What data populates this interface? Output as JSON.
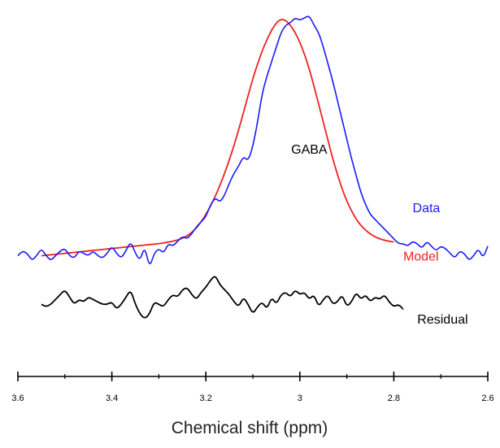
{
  "chart_data": {
    "type": "line",
    "title": "",
    "xlabel": "Chemical shift (ppm)",
    "ylabel": "",
    "x_reversed": true,
    "xlim": [
      3.6,
      2.6
    ],
    "ylim": [
      -0.42,
      1.0
    ],
    "grid": false,
    "x_ticks": [
      {
        "value": 3.6,
        "label": "3.6"
      },
      {
        "value": 3.4,
        "label": "3.4"
      },
      {
        "value": 3.2,
        "label": "3.2"
      },
      {
        "value": 3.0,
        "label": "3"
      },
      {
        "value": 2.8,
        "label": "2.8"
      },
      {
        "value": 2.6,
        "label": "2.6"
      }
    ],
    "annotations": [
      {
        "text": "GABA",
        "x": 2.98,
        "y": 0.42
      }
    ],
    "series": [
      {
        "name": "Data",
        "color": "#1a1aff",
        "label_at": {
          "x": 2.76,
          "y": 0.18
        },
        "x": [
          3.6,
          3.59,
          3.58,
          3.57,
          3.56,
          3.55,
          3.54,
          3.53,
          3.52,
          3.51,
          3.5,
          3.49,
          3.48,
          3.47,
          3.46,
          3.45,
          3.44,
          3.43,
          3.42,
          3.41,
          3.4,
          3.39,
          3.38,
          3.37,
          3.36,
          3.35,
          3.34,
          3.33,
          3.32,
          3.31,
          3.3,
          3.29,
          3.28,
          3.27,
          3.26,
          3.25,
          3.24,
          3.23,
          3.22,
          3.21,
          3.2,
          3.19,
          3.18,
          3.17,
          3.16,
          3.15,
          3.14,
          3.13,
          3.12,
          3.11,
          3.1,
          3.09,
          3.08,
          3.07,
          3.06,
          3.05,
          3.04,
          3.03,
          3.02,
          3.01,
          3.0,
          2.99,
          2.98,
          2.97,
          2.96,
          2.95,
          2.94,
          2.93,
          2.92,
          2.91,
          2.9,
          2.89,
          2.88,
          2.87,
          2.86,
          2.85,
          2.84,
          2.83,
          2.82,
          2.81,
          2.8,
          2.79,
          2.78,
          2.77,
          2.76,
          2.75,
          2.74,
          2.73,
          2.72,
          2.71,
          2.7,
          2.69,
          2.68,
          2.67,
          2.66,
          2.65,
          2.64,
          2.63,
          2.62,
          2.61,
          2.6
        ],
        "y": [
          0.0,
          0.02,
          0.01,
          -0.02,
          0.0,
          0.03,
          0.0,
          -0.02,
          0.0,
          0.02,
          0.03,
          0.0,
          -0.01,
          0.02,
          0.01,
          0.0,
          0.02,
          0.0,
          -0.01,
          0.01,
          0.04,
          0.01,
          -0.01,
          0.02,
          0.06,
          0.01,
          -0.02,
          0.04,
          -0.05,
          0.01,
          0.03,
          0.01,
          0.05,
          0.04,
          0.06,
          0.08,
          0.07,
          0.09,
          0.12,
          0.14,
          0.16,
          0.21,
          0.24,
          0.22,
          0.25,
          0.3,
          0.34,
          0.37,
          0.41,
          0.39,
          0.45,
          0.55,
          0.67,
          0.74,
          0.8,
          0.86,
          0.92,
          0.95,
          0.96,
          0.98,
          0.97,
          0.98,
          0.99,
          0.95,
          0.92,
          0.86,
          0.79,
          0.72,
          0.64,
          0.56,
          0.48,
          0.4,
          0.33,
          0.26,
          0.21,
          0.17,
          0.15,
          0.13,
          0.11,
          0.09,
          0.07,
          0.05,
          0.05,
          0.04,
          0.06,
          0.05,
          0.03,
          0.06,
          0.04,
          0.02,
          0.04,
          0.03,
          0.01,
          -0.01,
          0.02,
          0.01,
          -0.02,
          0.0,
          0.03,
          -0.01,
          0.04
        ]
      },
      {
        "name": "Model",
        "color": "#ee2222",
        "label_at": {
          "x": 2.78,
          "y": -0.02
        },
        "x": [
          3.55,
          3.54,
          3.53,
          3.52,
          3.51,
          3.5,
          3.49,
          3.48,
          3.47,
          3.46,
          3.45,
          3.44,
          3.43,
          3.42,
          3.41,
          3.4,
          3.39,
          3.38,
          3.37,
          3.36,
          3.35,
          3.34,
          3.33,
          3.32,
          3.31,
          3.3,
          3.29,
          3.28,
          3.27,
          3.26,
          3.25,
          3.24,
          3.23,
          3.22,
          3.21,
          3.2,
          3.19,
          3.18,
          3.17,
          3.16,
          3.15,
          3.14,
          3.13,
          3.12,
          3.11,
          3.1,
          3.09,
          3.08,
          3.07,
          3.06,
          3.05,
          3.04,
          3.03,
          3.02,
          3.01,
          3.0,
          2.99,
          2.98,
          2.97,
          2.96,
          2.95,
          2.94,
          2.93,
          2.92,
          2.91,
          2.9,
          2.89,
          2.88,
          2.87,
          2.86,
          2.85,
          2.84,
          2.83,
          2.82,
          2.81,
          2.8
        ],
        "y": [
          0.0,
          0.002,
          0.004,
          0.006,
          0.008,
          0.01,
          0.012,
          0.014,
          0.016,
          0.018,
          0.02,
          0.022,
          0.024,
          0.026,
          0.028,
          0.03,
          0.032,
          0.034,
          0.036,
          0.038,
          0.04,
          0.042,
          0.044,
          0.046,
          0.048,
          0.05,
          0.053,
          0.056,
          0.06,
          0.065,
          0.072,
          0.082,
          0.096,
          0.115,
          0.14,
          0.17,
          0.205,
          0.245,
          0.29,
          0.34,
          0.395,
          0.455,
          0.52,
          0.59,
          0.66,
          0.73,
          0.79,
          0.845,
          0.89,
          0.93,
          0.96,
          0.975,
          0.97,
          0.95,
          0.92,
          0.88,
          0.83,
          0.77,
          0.7,
          0.625,
          0.55,
          0.475,
          0.4,
          0.335,
          0.275,
          0.225,
          0.185,
          0.15,
          0.125,
          0.105,
          0.09,
          0.078,
          0.07,
          0.064,
          0.06,
          0.057
        ]
      },
      {
        "name": "Residual",
        "color": "#000000",
        "label_at": {
          "x": 2.75,
          "y": -0.28
        },
        "x": [
          3.55,
          3.54,
          3.53,
          3.52,
          3.51,
          3.5,
          3.49,
          3.48,
          3.47,
          3.46,
          3.45,
          3.44,
          3.43,
          3.42,
          3.41,
          3.4,
          3.39,
          3.38,
          3.37,
          3.36,
          3.35,
          3.34,
          3.33,
          3.32,
          3.31,
          3.3,
          3.29,
          3.28,
          3.27,
          3.26,
          3.25,
          3.24,
          3.23,
          3.22,
          3.21,
          3.2,
          3.19,
          3.18,
          3.17,
          3.16,
          3.15,
          3.14,
          3.13,
          3.12,
          3.11,
          3.1,
          3.09,
          3.08,
          3.07,
          3.06,
          3.05,
          3.04,
          3.03,
          3.02,
          3.01,
          3.0,
          2.99,
          2.98,
          2.97,
          2.96,
          2.95,
          2.94,
          2.93,
          2.92,
          2.91,
          2.9,
          2.89,
          2.88,
          2.87,
          2.86,
          2.85,
          2.84,
          2.83,
          2.82,
          2.81,
          2.8,
          2.79,
          2.78
        ],
        "y": [
          -0.2,
          -0.21,
          -0.2,
          -0.18,
          -0.16,
          -0.14,
          -0.17,
          -0.2,
          -0.18,
          -0.19,
          -0.17,
          -0.18,
          -0.19,
          -0.2,
          -0.2,
          -0.19,
          -0.22,
          -0.2,
          -0.17,
          -0.14,
          -0.2,
          -0.24,
          -0.26,
          -0.24,
          -0.19,
          -0.2,
          -0.21,
          -0.18,
          -0.16,
          -0.17,
          -0.14,
          -0.13,
          -0.16,
          -0.18,
          -0.15,
          -0.13,
          -0.1,
          -0.08,
          -0.12,
          -0.14,
          -0.16,
          -0.19,
          -0.21,
          -0.17,
          -0.2,
          -0.24,
          -0.21,
          -0.19,
          -0.22,
          -0.17,
          -0.2,
          -0.16,
          -0.15,
          -0.17,
          -0.14,
          -0.16,
          -0.15,
          -0.18,
          -0.16,
          -0.21,
          -0.18,
          -0.16,
          -0.2,
          -0.19,
          -0.16,
          -0.21,
          -0.19,
          -0.15,
          -0.18,
          -0.16,
          -0.19,
          -0.17,
          -0.18,
          -0.16,
          -0.19,
          -0.21,
          -0.2,
          -0.22
        ]
      }
    ]
  }
}
